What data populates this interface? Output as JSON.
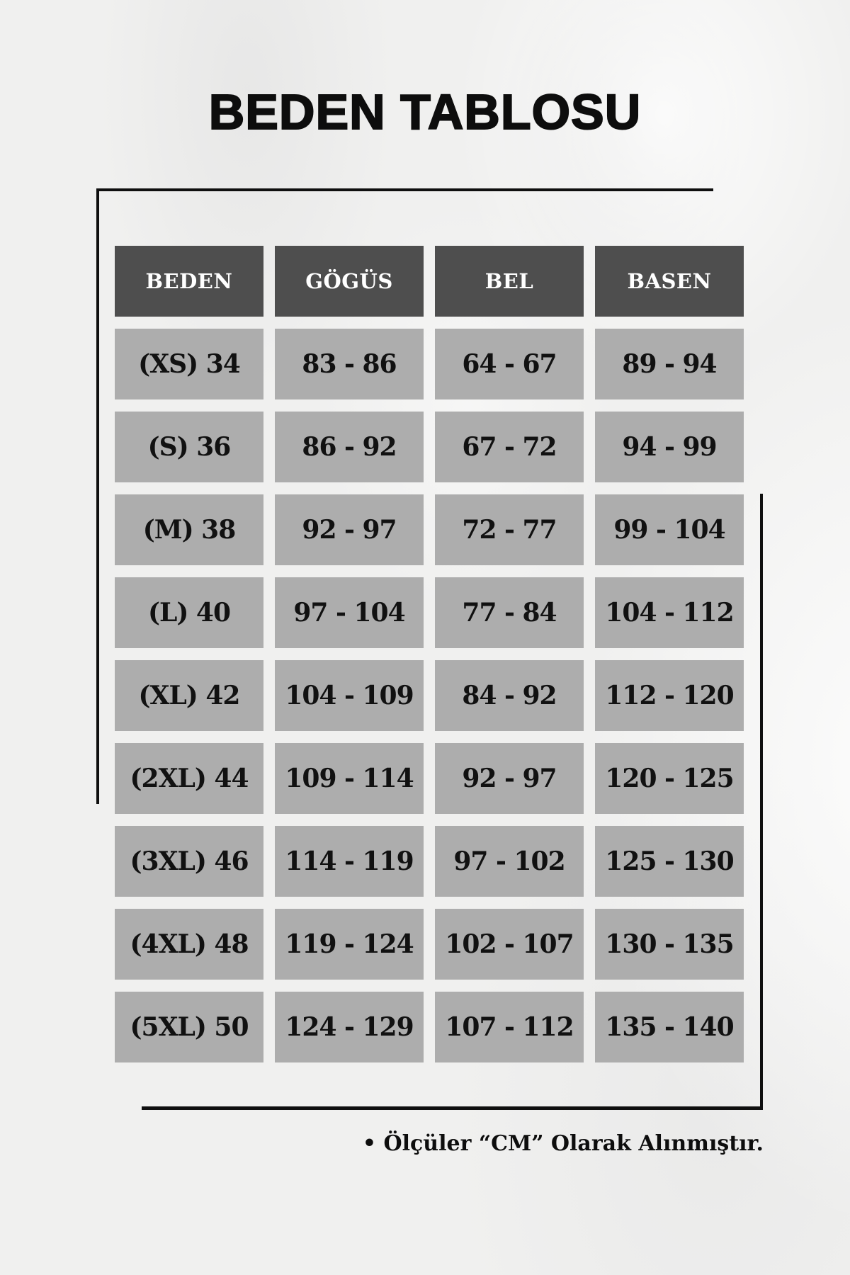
{
  "title": "BEDEN TABLOSU",
  "footnote": "• Ölçüler “CM” Olarak Alınmıştır.",
  "colors": {
    "header_bg": "#4e4e4e",
    "header_text": "#ffffff",
    "cell_bg": "#adadad",
    "cell_text": "#111111",
    "frame": "#0f0f0f",
    "background": "#f0f0ef"
  },
  "table": {
    "headers": [
      "BEDEN",
      "GÖGÜS",
      "BEL",
      "BASEN"
    ],
    "rows": [
      [
        "(XS) 34",
        "83 - 86",
        "64 - 67",
        "89 - 94"
      ],
      [
        "(S) 36",
        "86 - 92",
        "67 - 72",
        "94 - 99"
      ],
      [
        "(M) 38",
        "92 - 97",
        "72 - 77",
        "99 - 104"
      ],
      [
        "(L) 40",
        "97 - 104",
        "77 - 84",
        "104 - 112"
      ],
      [
        "(XL) 42",
        "104 - 109",
        "84 - 92",
        "112 - 120"
      ],
      [
        "(2XL) 44",
        "109 - 114",
        "92 - 97",
        "120 - 125"
      ],
      [
        "(3XL) 46",
        "114 - 119",
        "97 - 102",
        "125 - 130"
      ],
      [
        "(4XL) 48",
        "119 - 124",
        "102 - 107",
        "130 - 135"
      ],
      [
        "(5XL) 50",
        "124 - 129",
        "107 - 112",
        "135 - 140"
      ]
    ]
  },
  "chart_data": {
    "type": "table",
    "title": "BEDEN TABLOSU",
    "columns": [
      "BEDEN",
      "GÖGÜS",
      "BEL",
      "BASEN"
    ],
    "rows": [
      {
        "beden": "(XS) 34",
        "gogus": "83 - 86",
        "bel": "64 - 67",
        "basen": "89 - 94"
      },
      {
        "beden": "(S) 36",
        "gogus": "86 - 92",
        "bel": "67 - 72",
        "basen": "94 - 99"
      },
      {
        "beden": "(M) 38",
        "gogus": "92 - 97",
        "bel": "72 - 77",
        "basen": "99 - 104"
      },
      {
        "beden": "(L) 40",
        "gogus": "97 - 104",
        "bel": "77 - 84",
        "basen": "104 - 112"
      },
      {
        "beden": "(XL) 42",
        "gogus": "104 - 109",
        "bel": "84 - 92",
        "basen": "112 - 120"
      },
      {
        "beden": "(2XL) 44",
        "gogus": "109 - 114",
        "bel": "92 - 97",
        "basen": "120 - 125"
      },
      {
        "beden": "(3XL) 46",
        "gogus": "114 - 119",
        "bel": "97 - 102",
        "basen": "125 - 130"
      },
      {
        "beden": "(4XL) 48",
        "gogus": "119 - 124",
        "bel": "102 - 107",
        "basen": "130 - 135"
      },
      {
        "beden": "(5XL) 50",
        "gogus": "124 - 129",
        "bel": "107 - 112",
        "basen": "135 - 140"
      }
    ],
    "note": "• Ölçüler “CM” Olarak Alınmıştır.",
    "units": "cm"
  }
}
